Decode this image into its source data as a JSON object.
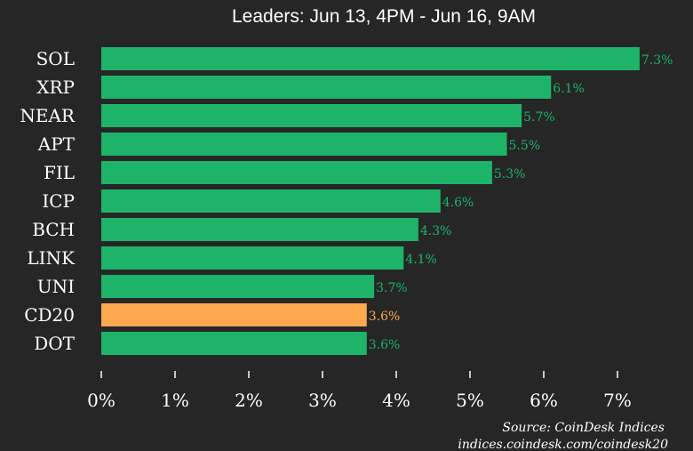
{
  "chart_data": {
    "type": "bar",
    "orientation": "horizontal",
    "title": "Leaders: Jun 13, 4PM - Jun 16, 9AM",
    "categories": [
      "SOL",
      "XRP",
      "NEAR",
      "APT",
      "FIL",
      "ICP",
      "BCH",
      "LINK",
      "UNI",
      "CD20",
      "DOT"
    ],
    "values": [
      7.3,
      6.1,
      5.7,
      5.5,
      5.3,
      4.6,
      4.3,
      4.1,
      3.7,
      3.6,
      3.6
    ],
    "value_labels": [
      "7.3%",
      "6.1%",
      "5.7%",
      "5.5%",
      "5.3%",
      "4.6%",
      "4.3%",
      "4.1%",
      "3.7%",
      "3.6%",
      "3.6%"
    ],
    "highlight": [
      "",
      "",
      "",
      "",
      "",
      "",
      "",
      "",
      "",
      "CD20",
      ""
    ],
    "x_ticks": [
      0,
      1,
      2,
      3,
      4,
      5,
      6,
      7
    ],
    "x_tick_labels": [
      "0%",
      "1%",
      "2%",
      "3%",
      "4%",
      "5%",
      "6%",
      "7%"
    ],
    "xlim": [
      0,
      7.3
    ],
    "grid": false,
    "colors": {
      "bar": "#1db46a",
      "highlight_bar": "#fca84e",
      "value_label": "#1db46a",
      "highlight_value_label": "#fca84e",
      "background": "#262626",
      "text": "#ffffff"
    }
  },
  "source": {
    "line1": "Source: CoinDesk Indices",
    "line2": "indices.coindesk.com/coindesk20"
  }
}
